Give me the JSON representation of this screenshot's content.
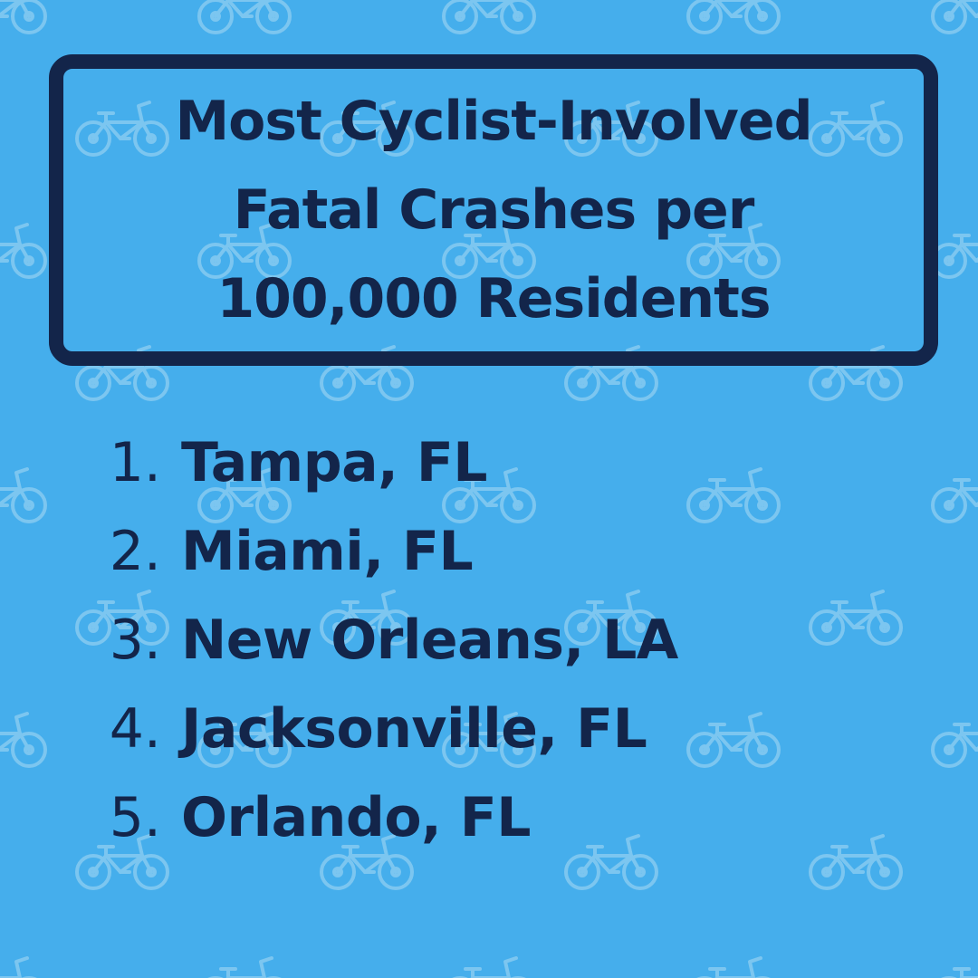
{
  "title": {
    "lines": [
      "Most Cyclist-Involved",
      "Fatal Crashes per",
      "100,000 Residents"
    ]
  },
  "rankings": [
    {
      "number": "1.",
      "name": "Tampa, FL"
    },
    {
      "number": "2.",
      "name": "Miami, FL"
    },
    {
      "number": "3.",
      "name": "New Orleans, LA"
    },
    {
      "number": "4.",
      "name": "Jacksonville, FL"
    },
    {
      "number": "5.",
      "name": "Orlando, FL"
    }
  ],
  "background": {
    "color": "#45aeec",
    "pattern_icon": "bicycle-icon",
    "pattern_color": "#7cc6f0"
  },
  "colors": {
    "text": "#13254a",
    "border": "#13254a"
  }
}
